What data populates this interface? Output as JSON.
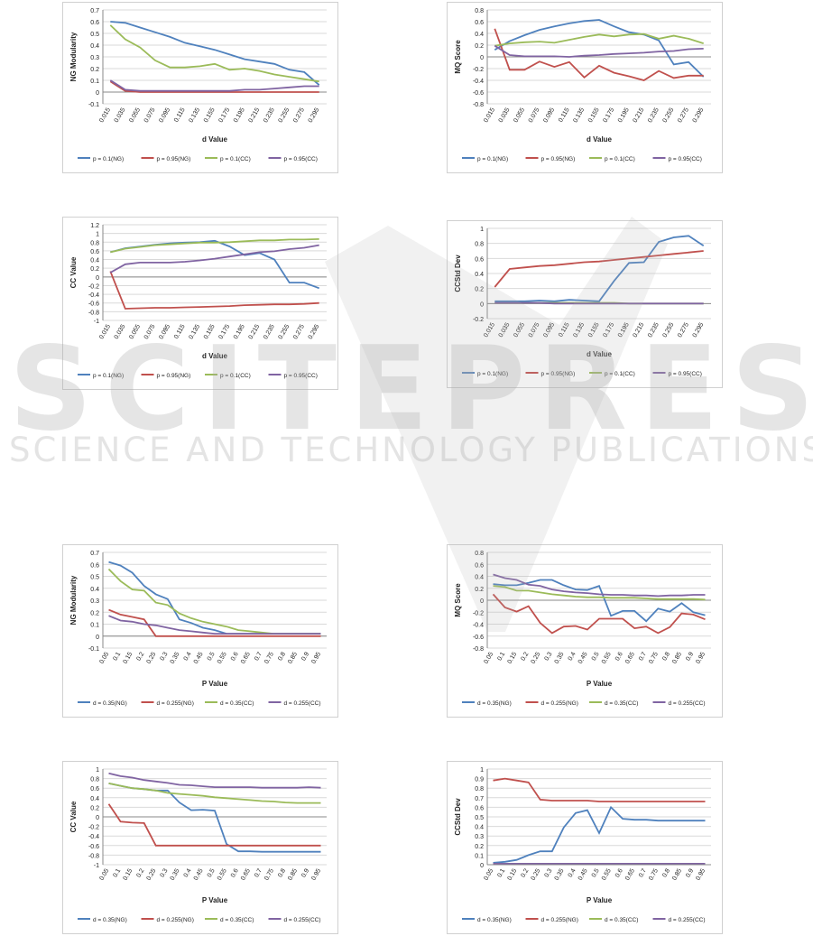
{
  "watermark": {
    "logo_text": "SCITEPRESS",
    "subtitle": "SCIENCE AND TECHNOLOGY PUBLICATIONS"
  },
  "colors": {
    "ng_p01": "#4f81bd",
    "ng_p095": "#c0504d",
    "cc_p01": "#9bbb59",
    "cc_p095": "#8064a2"
  },
  "chart_data": [
    {
      "type": "line",
      "ylabel": "NG Modularity",
      "xlabel": "d Value",
      "ylim": [
        -0.1,
        0.7
      ],
      "yticks": [
        -0.1,
        0,
        0.1,
        0.2,
        0.3,
        0.4,
        0.5,
        0.6,
        0.7
      ],
      "grid": true,
      "legend_placement": "bottom",
      "categories": [
        "0.015",
        "0.035",
        "0.055",
        "0.075",
        "0.095",
        "0.115",
        "0.135",
        "0.155",
        "0.175",
        "0.195",
        "0.215",
        "0.235",
        "0.255",
        "0.275",
        "0.295"
      ],
      "series": [
        {
          "name": "p = 0.1(NG)",
          "color": "#4f81bd",
          "values": [
            0.6,
            0.59,
            0.55,
            0.51,
            0.47,
            0.42,
            0.39,
            0.36,
            0.32,
            0.28,
            0.26,
            0.24,
            0.19,
            0.17,
            0.06
          ]
        },
        {
          "name": "p = 0.95(NG)",
          "color": "#c0504d",
          "values": [
            0.09,
            0.01,
            0.0,
            0.0,
            0.0,
            0.0,
            0.0,
            0.0,
            0.0,
            0.0,
            0.0,
            0.0,
            0.0,
            0.0,
            0.0
          ]
        },
        {
          "name": "p = 0.1(CC)",
          "color": "#9bbb59",
          "values": [
            0.57,
            0.45,
            0.38,
            0.27,
            0.21,
            0.21,
            0.22,
            0.24,
            0.19,
            0.2,
            0.18,
            0.15,
            0.13,
            0.11,
            0.09
          ]
        },
        {
          "name": "p = 0.95(CC)",
          "color": "#8064a2",
          "values": [
            0.1,
            0.02,
            0.01,
            0.01,
            0.01,
            0.01,
            0.01,
            0.01,
            0.01,
            0.02,
            0.02,
            0.03,
            0.04,
            0.05,
            0.05
          ]
        }
      ]
    },
    {
      "type": "line",
      "ylabel": "MQ Score",
      "xlabel": "d Value",
      "ylim": [
        -0.8,
        0.8
      ],
      "yticks": [
        -0.8,
        -0.6,
        -0.4,
        -0.2,
        0,
        0.2,
        0.4,
        0.6,
        0.8
      ],
      "grid": true,
      "legend_placement": "bottom",
      "categories": [
        "0.015",
        "0.035",
        "0.055",
        "0.075",
        "0.095",
        "0.115",
        "0.135",
        "0.155",
        "0.175",
        "0.195",
        "0.215",
        "0.235",
        "0.255",
        "0.275",
        "0.295"
      ],
      "series": [
        {
          "name": "p = 0.1(NG)",
          "color": "#4f81bd",
          "values": [
            0.12,
            0.27,
            0.37,
            0.46,
            0.52,
            0.57,
            0.61,
            0.63,
            0.52,
            0.42,
            0.38,
            0.28,
            -0.13,
            -0.09,
            -0.34
          ]
        },
        {
          "name": "p = 0.95(NG)",
          "color": "#c0504d",
          "values": [
            0.48,
            -0.22,
            -0.22,
            -0.08,
            -0.17,
            -0.09,
            -0.35,
            -0.15,
            -0.27,
            -0.33,
            -0.4,
            -0.24,
            -0.36,
            -0.32,
            -0.32
          ]
        },
        {
          "name": "p = 0.1(CC)",
          "color": "#9bbb59",
          "values": [
            0.19,
            0.23,
            0.25,
            0.26,
            0.24,
            0.29,
            0.34,
            0.38,
            0.35,
            0.38,
            0.39,
            0.31,
            0.36,
            0.31,
            0.23
          ]
        },
        {
          "name": "p = 0.95(CC)",
          "color": "#8064a2",
          "values": [
            0.19,
            0.03,
            0.01,
            0.01,
            0.01,
            0.0,
            0.02,
            0.03,
            0.05,
            0.06,
            0.07,
            0.09,
            0.1,
            0.13,
            0.14
          ]
        }
      ]
    },
    {
      "type": "line",
      "ylabel": "CC Value",
      "xlabel": "d Value",
      "ylim": [
        -1,
        1.2
      ],
      "yticks": [
        -1,
        -0.8,
        -0.6,
        -0.4,
        -0.2,
        0,
        0.2,
        0.4,
        0.6,
        0.8,
        1,
        1.2
      ],
      "grid": true,
      "legend_placement": "bottom",
      "categories": [
        "0.015",
        "0.035",
        "0.055",
        "0.075",
        "0.095",
        "0.115",
        "0.135",
        "0.155",
        "0.175",
        "0.195",
        "0.215",
        "0.235",
        "0.255",
        "0.275",
        "0.295"
      ],
      "series": [
        {
          "name": "p = 0.1(NG)",
          "color": "#4f81bd",
          "values": [
            0.57,
            0.66,
            0.7,
            0.74,
            0.77,
            0.79,
            0.8,
            0.83,
            0.7,
            0.5,
            0.55,
            0.4,
            -0.13,
            -0.13,
            -0.26
          ]
        },
        {
          "name": "p = 0.95(NG)",
          "color": "#c0504d",
          "values": [
            0.13,
            -0.73,
            -0.72,
            -0.71,
            -0.71,
            -0.7,
            -0.69,
            -0.68,
            -0.67,
            -0.65,
            -0.64,
            -0.63,
            -0.63,
            -0.62,
            -0.6
          ]
        },
        {
          "name": "p = 0.1(CC)",
          "color": "#9bbb59",
          "values": [
            0.57,
            0.65,
            0.69,
            0.73,
            0.75,
            0.77,
            0.79,
            0.79,
            0.8,
            0.82,
            0.84,
            0.84,
            0.86,
            0.86,
            0.87
          ]
        },
        {
          "name": "p = 0.95(CC)",
          "color": "#8064a2",
          "values": [
            0.1,
            0.29,
            0.33,
            0.33,
            0.33,
            0.35,
            0.38,
            0.42,
            0.47,
            0.52,
            0.57,
            0.59,
            0.64,
            0.67,
            0.73
          ]
        }
      ]
    },
    {
      "type": "line",
      "ylabel": "CCStd Dev",
      "xlabel": "d Value",
      "ylim": [
        -0.2,
        1
      ],
      "yticks": [
        -0.2,
        0,
        0.2,
        0.4,
        0.6,
        0.8,
        1
      ],
      "grid": true,
      "legend_placement": "bottom",
      "categories": [
        "0.015",
        "0.035",
        "0.055",
        "0.075",
        "0.095",
        "0.115",
        "0.135",
        "0.155",
        "0.175",
        "0.195",
        "0.215",
        "0.235",
        "0.255",
        "0.275",
        "0.295"
      ],
      "series": [
        {
          "name": "p = 0.1(NG)",
          "color": "#4f81bd",
          "values": [
            0.03,
            0.03,
            0.03,
            0.04,
            0.03,
            0.05,
            0.04,
            0.03,
            0.3,
            0.54,
            0.55,
            0.82,
            0.88,
            0.9,
            0.77
          ]
        },
        {
          "name": "p = 0.95(NG)",
          "color": "#c0504d",
          "values": [
            0.22,
            0.46,
            0.48,
            0.5,
            0.51,
            0.53,
            0.55,
            0.56,
            0.58,
            0.6,
            0.62,
            0.64,
            0.66,
            0.68,
            0.7
          ]
        },
        {
          "name": "p = 0.1(CC)",
          "color": "#9bbb59",
          "values": [
            0.01,
            0.01,
            0.01,
            0.01,
            0.01,
            0.01,
            0.01,
            0.01,
            0.01,
            0.0,
            0.0,
            0.0,
            0.0,
            0.0,
            0.0
          ]
        },
        {
          "name": "p = 0.95(CC)",
          "color": "#8064a2",
          "values": [
            0.01,
            0.01,
            0.01,
            0.01,
            0.0,
            0.0,
            0.0,
            0.0,
            0.0,
            0.0,
            0.0,
            0.0,
            0.0,
            0.0,
            0.0
          ]
        }
      ]
    },
    {
      "type": "line",
      "ylabel": "NG Modularity",
      "xlabel": "P Value",
      "ylim": [
        -0.1,
        0.7
      ],
      "yticks": [
        -0.1,
        0,
        0.1,
        0.2,
        0.3,
        0.4,
        0.5,
        0.6,
        0.7
      ],
      "grid": true,
      "legend_placement": "bottom",
      "categories": [
        "0.05",
        "0.1",
        "0.15",
        "0.2",
        "0.25",
        "0.3",
        "0.35",
        "0.4",
        "0.45",
        "0.5",
        "0.55",
        "0.6",
        "0.65",
        "0.7",
        "0.75",
        "0.8",
        "0.85",
        "0.9",
        "0.95"
      ],
      "series": [
        {
          "name": "d = 0.35(NG)",
          "color": "#4f81bd",
          "values": [
            0.62,
            0.59,
            0.53,
            0.42,
            0.35,
            0.31,
            0.14,
            0.11,
            0.07,
            0.05,
            0.02,
            0.02,
            0.02,
            0.02,
            0.02,
            0.02,
            0.02,
            0.02,
            0.02
          ]
        },
        {
          "name": "d = 0.255(NG)",
          "color": "#c0504d",
          "values": [
            0.22,
            0.18,
            0.16,
            0.14,
            0.0,
            0.0,
            0.0,
            0.0,
            0.0,
            0.0,
            0.0,
            0.0,
            0.0,
            0.0,
            0.0,
            0.0,
            0.0,
            0.0,
            0.0
          ]
        },
        {
          "name": "d = 0.35(CC)",
          "color": "#9bbb59",
          "values": [
            0.56,
            0.46,
            0.39,
            0.38,
            0.28,
            0.26,
            0.19,
            0.15,
            0.12,
            0.1,
            0.08,
            0.05,
            0.04,
            0.03,
            0.02,
            0.02,
            0.02,
            0.02,
            0.02
          ]
        },
        {
          "name": "d = 0.255(CC)",
          "color": "#8064a2",
          "values": [
            0.17,
            0.13,
            0.12,
            0.1,
            0.09,
            0.07,
            0.05,
            0.04,
            0.03,
            0.02,
            0.02,
            0.02,
            0.02,
            0.02,
            0.02,
            0.02,
            0.02,
            0.02,
            0.02
          ]
        }
      ]
    },
    {
      "type": "line",
      "ylabel": "MQ Score",
      "xlabel": "P Value",
      "ylim": [
        -0.8,
        0.8
      ],
      "yticks": [
        -0.8,
        -0.6,
        -0.4,
        -0.2,
        0,
        0.2,
        0.4,
        0.6,
        0.8
      ],
      "grid": true,
      "legend_placement": "bottom",
      "categories": [
        "0.05",
        "0.1",
        "0.15",
        "0.2",
        "0.25",
        "0.3",
        "0.35",
        "0.4",
        "0.45",
        "0.5",
        "0.55",
        "0.6",
        "0.65",
        "0.7",
        "0.75",
        "0.8",
        "0.85",
        "0.9",
        "0.95"
      ],
      "series": [
        {
          "name": "d = 0.35(NG)",
          "color": "#4f81bd",
          "values": [
            0.27,
            0.25,
            0.25,
            0.29,
            0.34,
            0.34,
            0.25,
            0.18,
            0.17,
            0.24,
            -0.26,
            -0.18,
            -0.18,
            -0.35,
            -0.14,
            -0.19,
            -0.05,
            -0.2,
            -0.25
          ]
        },
        {
          "name": "d = 0.255(NG)",
          "color": "#c0504d",
          "values": [
            0.1,
            -0.12,
            -0.19,
            -0.1,
            -0.38,
            -0.55,
            -0.44,
            -0.43,
            -0.49,
            -0.31,
            -0.31,
            -0.31,
            -0.47,
            -0.44,
            -0.55,
            -0.45,
            -0.22,
            -0.24,
            -0.32
          ]
        },
        {
          "name": "d = 0.35(CC)",
          "color": "#9bbb59",
          "values": [
            0.24,
            0.22,
            0.16,
            0.16,
            0.13,
            0.1,
            0.08,
            0.06,
            0.05,
            0.05,
            0.04,
            0.04,
            0.04,
            0.03,
            0.02,
            0.02,
            0.02,
            0.02,
            0.01
          ]
        },
        {
          "name": "d = 0.255(CC)",
          "color": "#8064a2",
          "values": [
            0.43,
            0.37,
            0.34,
            0.26,
            0.24,
            0.18,
            0.15,
            0.13,
            0.12,
            0.1,
            0.09,
            0.09,
            0.08,
            0.08,
            0.07,
            0.08,
            0.08,
            0.09,
            0.09
          ]
        }
      ]
    },
    {
      "type": "line",
      "ylabel": "CC Value",
      "xlabel": "P Value",
      "ylim": [
        -1,
        1
      ],
      "yticks": [
        -1,
        -0.8,
        -0.6,
        -0.4,
        -0.2,
        0,
        0.2,
        0.4,
        0.6,
        0.8,
        1
      ],
      "grid": true,
      "legend_placement": "bottom",
      "categories": [
        "0.05",
        "0.1",
        "0.15",
        "0.2",
        "0.25",
        "0.3",
        "0.35",
        "0.4",
        "0.45",
        "0.5",
        "0.55",
        "0.6",
        "0.65",
        "0.7",
        "0.75",
        "0.8",
        "0.85",
        "0.9",
        "0.95"
      ],
      "series": [
        {
          "name": "d = 0.35(NG)",
          "color": "#4f81bd",
          "values": [
            0.7,
            0.65,
            0.6,
            0.58,
            0.55,
            0.55,
            0.3,
            0.14,
            0.15,
            0.13,
            -0.57,
            -0.72,
            -0.72,
            -0.73,
            -0.73,
            -0.73,
            -0.73,
            -0.73,
            -0.73
          ]
        },
        {
          "name": "d = 0.255(NG)",
          "color": "#c0504d",
          "values": [
            0.27,
            -0.1,
            -0.12,
            -0.13,
            -0.6,
            -0.6,
            -0.6,
            -0.6,
            -0.6,
            -0.6,
            -0.6,
            -0.6,
            -0.6,
            -0.6,
            -0.6,
            -0.6,
            -0.6,
            -0.6,
            -0.6
          ]
        },
        {
          "name": "d = 0.35(CC)",
          "color": "#9bbb59",
          "values": [
            0.7,
            0.65,
            0.6,
            0.58,
            0.55,
            0.5,
            0.48,
            0.46,
            0.44,
            0.41,
            0.39,
            0.37,
            0.35,
            0.33,
            0.32,
            0.3,
            0.29,
            0.29,
            0.29
          ]
        },
        {
          "name": "d = 0.255(CC)",
          "color": "#8064a2",
          "values": [
            0.91,
            0.85,
            0.82,
            0.77,
            0.74,
            0.71,
            0.67,
            0.66,
            0.64,
            0.62,
            0.62,
            0.62,
            0.62,
            0.61,
            0.61,
            0.61,
            0.61,
            0.62,
            0.61
          ]
        }
      ]
    },
    {
      "type": "line",
      "ylabel": "CCStd Dev",
      "xlabel": "P Value",
      "ylim": [
        0,
        1
      ],
      "yticks": [
        0,
        0.1,
        0.2,
        0.3,
        0.4,
        0.5,
        0.6,
        0.7,
        0.8,
        0.9,
        1
      ],
      "grid": true,
      "legend_placement": "bottom",
      "categories": [
        "0.05",
        "0.1",
        "0.15",
        "0.2",
        "0.25",
        "0.3",
        "0.35",
        "0.4",
        "0.45",
        "0.5",
        "0.55",
        "0.6",
        "0.65",
        "0.7",
        "0.75",
        "0.8",
        "0.85",
        "0.9",
        "0.95"
      ],
      "series": [
        {
          "name": "d = 0.35(NG)",
          "color": "#4f81bd",
          "values": [
            0.02,
            0.03,
            0.05,
            0.1,
            0.14,
            0.14,
            0.39,
            0.54,
            0.57,
            0.33,
            0.6,
            0.48,
            0.47,
            0.47,
            0.46,
            0.46,
            0.46,
            0.46,
            0.46
          ]
        },
        {
          "name": "d = 0.255(NG)",
          "color": "#c0504d",
          "values": [
            0.88,
            0.9,
            0.88,
            0.86,
            0.68,
            0.67,
            0.67,
            0.67,
            0.67,
            0.66,
            0.66,
            0.66,
            0.66,
            0.66,
            0.66,
            0.66,
            0.66,
            0.66,
            0.66
          ]
        },
        {
          "name": "d = 0.35(CC)",
          "color": "#9bbb59",
          "values": [
            0.01,
            0.01,
            0.01,
            0.01,
            0.01,
            0.01,
            0.01,
            0.01,
            0.01,
            0.01,
            0.01,
            0.01,
            0.01,
            0.01,
            0.01,
            0.01,
            0.01,
            0.01,
            0.01
          ]
        },
        {
          "name": "d = 0.255(CC)",
          "color": "#8064a2",
          "values": [
            0.01,
            0.01,
            0.01,
            0.01,
            0.01,
            0.01,
            0.01,
            0.01,
            0.01,
            0.01,
            0.01,
            0.01,
            0.01,
            0.01,
            0.01,
            0.01,
            0.01,
            0.01,
            0.01
          ]
        }
      ]
    }
  ]
}
